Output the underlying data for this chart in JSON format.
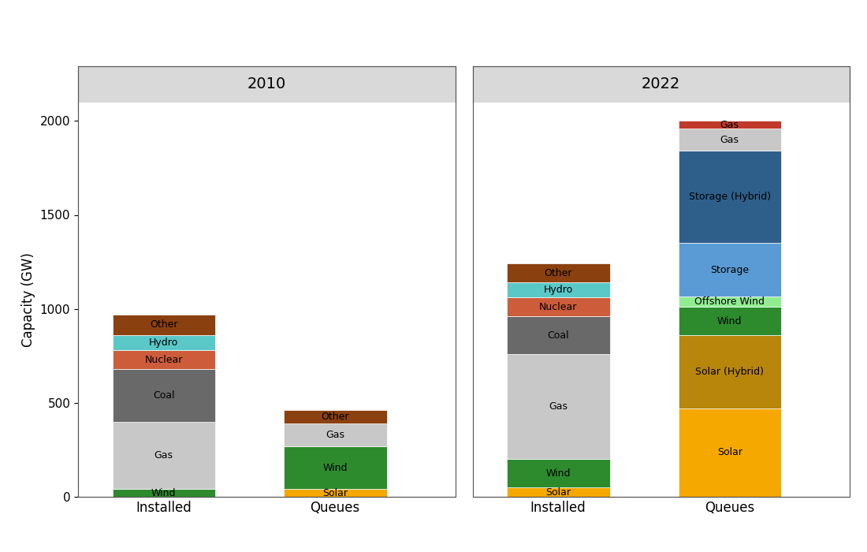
{
  "panels": [
    "2010",
    "2022"
  ],
  "ylim": [
    0,
    2100
  ],
  "yticks": [
    0,
    500,
    1000,
    1500,
    2000
  ],
  "ylabel": "Capacity (GW)",
  "colors": {
    "Wind": "#2d8b2d",
    "Solar": "#f5a800",
    "Gas": "#c8c8c8",
    "Coal": "#696969",
    "Nuclear": "#cd5c3a",
    "Hydro": "#5bc8c8",
    "Other": "#8b4010",
    "Solar (Hybrid)": "#b8860b",
    "Offshore Wind": "#90ee90",
    "Storage": "#5b9bd5",
    "Storage (Hybrid)": "#2e5f8a",
    "Gas_small": "#c0392b"
  },
  "bars": {
    "2010_Installed": {
      "Wind": 40,
      "Gas": 360,
      "Coal": 280,
      "Nuclear": 100,
      "Hydro": 80,
      "Other": 110
    },
    "2010_Queues": {
      "Solar": 40,
      "Wind": 230,
      "Gas": 120,
      "Other": 70
    },
    "2022_Installed": {
      "Solar": 50,
      "Wind": 150,
      "Gas": 560,
      "Coal": 200,
      "Nuclear": 100,
      "Hydro": 80,
      "Other": 100
    },
    "2022_Queues": {
      "Solar": 470,
      "Solar (Hybrid)": 390,
      "Wind": 150,
      "Offshore Wind": 55,
      "Storage": 285,
      "Storage (Hybrid)": 490,
      "Gas": 120,
      "Gas_small": 40
    }
  },
  "label_map": {
    "Wind": "Wind",
    "Solar": "Solar",
    "Gas": "Gas",
    "Coal": "Coal",
    "Nuclear": "Nuclear",
    "Hydro": "Hydro",
    "Other": "Other",
    "Solar (Hybrid)": "Solar (Hybrid)",
    "Offshore Wind": "Offshore Wind",
    "Storage": "Storage",
    "Storage (Hybrid)": "Storage (Hybrid)",
    "Gas_small": "Gas"
  }
}
